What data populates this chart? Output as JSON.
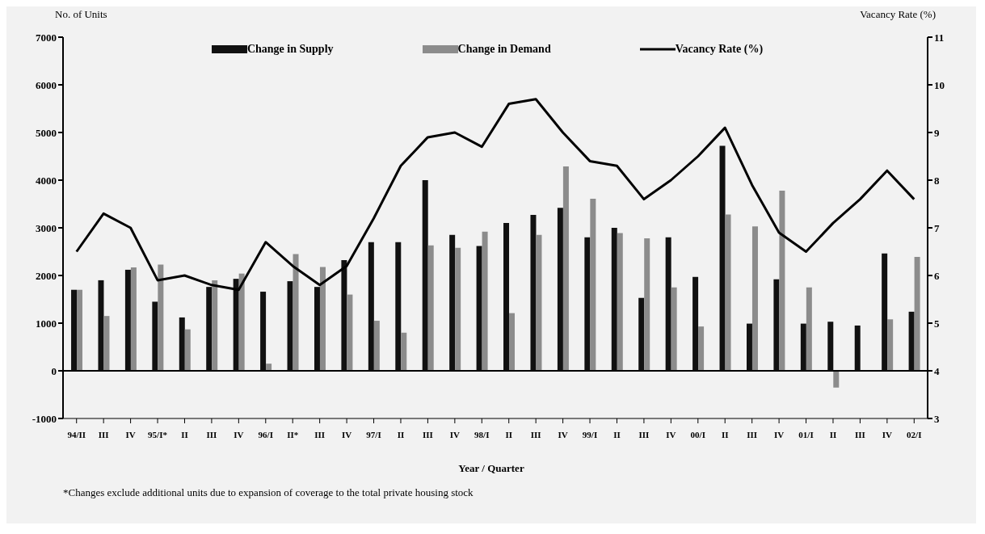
{
  "chart_data": {
    "type": "bar",
    "ylabel": "No. of Units",
    "y2label": "Vacancy Rate (%)",
    "xlabel": "Year / Quarter",
    "annotations": [
      "*Changes exclude additional units due to expansion of coverage to the total private housing stock"
    ],
    "categories": [
      "94/II",
      "III",
      "IV",
      "95/I*",
      "II",
      "III",
      "IV",
      "96/I",
      "II*",
      "III",
      "IV",
      "97/I",
      "II",
      "III",
      "IV",
      "98/I",
      "II",
      "III",
      "IV",
      "99/I",
      "II",
      "III",
      "IV",
      "00/I",
      "II",
      "III",
      "IV",
      "01/I",
      "II",
      "III",
      "IV",
      "02/I"
    ],
    "series": [
      {
        "name": "Change in Supply",
        "color": "#111111",
        "values": [
          1700,
          1900,
          2120,
          1450,
          1120,
          1760,
          1930,
          1660,
          1880,
          1760,
          2320,
          2700,
          2700,
          4000,
          2850,
          2620,
          3100,
          3270,
          3420,
          2800,
          3000,
          1530,
          2800,
          1970,
          4720,
          990,
          1920,
          990,
          1030,
          950,
          2460,
          1240
        ]
      },
      {
        "name": "Change in Demand",
        "color": "#8c8c8c",
        "values": [
          1700,
          1150,
          2170,
          2230,
          870,
          1900,
          2040,
          150,
          2450,
          2180,
          1600,
          1050,
          800,
          2630,
          2580,
          2920,
          1210,
          2850,
          4290,
          3610,
          2890,
          2780,
          1750,
          930,
          3280,
          3030,
          3780,
          1750,
          -350,
          null,
          1080,
          2390
        ]
      },
      {
        "name": "Vacancy Rate (%)",
        "type": "line",
        "axis": "y2",
        "color": "#000000",
        "values": [
          6.5,
          7.3,
          7.0,
          5.9,
          6.0,
          5.8,
          5.7,
          6.7,
          6.2,
          5.8,
          6.2,
          7.2,
          8.3,
          8.9,
          9.0,
          8.7,
          9.6,
          9.7,
          9.0,
          8.4,
          8.3,
          7.6,
          8.0,
          8.5,
          9.1,
          7.9,
          6.9,
          6.5,
          7.1,
          7.6,
          8.2,
          7.6
        ]
      }
    ],
    "ylim": [
      -1000,
      7000
    ],
    "yticks": [
      -1000,
      0,
      1000,
      2000,
      3000,
      4000,
      5000,
      6000,
      7000
    ],
    "y2lim": [
      3,
      11
    ],
    "y2ticks": [
      3,
      4,
      5,
      6,
      7,
      8,
      9,
      10,
      11
    ],
    "legend": "top",
    "marker": "none",
    "line_style": "solid"
  }
}
